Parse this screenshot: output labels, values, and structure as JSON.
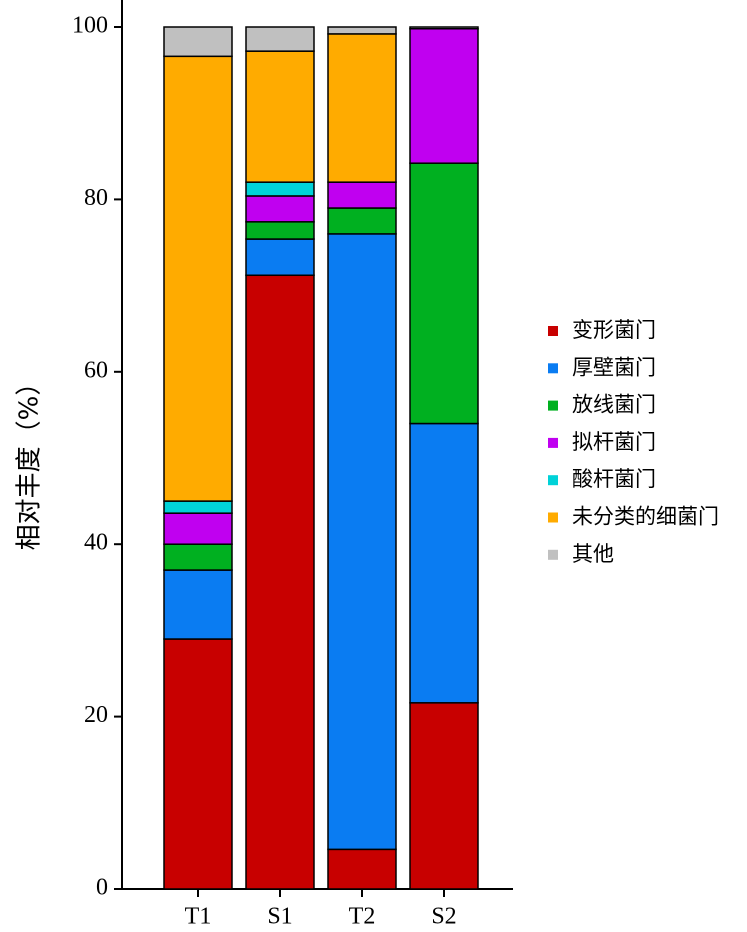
{
  "chart_data": {
    "type": "bar",
    "stacked": true,
    "ylabel": "相对丰度（%）",
    "xlabel": "",
    "title": "",
    "ylim": [
      0,
      100
    ],
    "yticks": [
      0,
      20,
      40,
      60,
      80,
      100
    ],
    "categories": [
      "T1",
      "S1",
      "T2",
      "S2"
    ],
    "legend_position": "right",
    "series": [
      {
        "name": "变形菌门",
        "color": "#c80000",
        "values": [
          29.0,
          71.2,
          4.6,
          21.6
        ]
      },
      {
        "name": "厚壁菌门",
        "color": "#0a7cf2",
        "values": [
          8.0,
          4.2,
          71.4,
          32.4
        ]
      },
      {
        "name": "放线菌门",
        "color": "#00b020",
        "values": [
          3.0,
          2.0,
          3.0,
          30.2
        ]
      },
      {
        "name": "拟杆菌门",
        "color": "#c000f0",
        "values": [
          3.6,
          3.0,
          3.0,
          15.6
        ]
      },
      {
        "name": "酸杆菌门",
        "color": "#00d2d8",
        "values": [
          1.4,
          1.6,
          0.0,
          0.0
        ]
      },
      {
        "name": "未分类的细菌门",
        "color": "#ffab00",
        "values": [
          51.6,
          15.2,
          17.2,
          0.0
        ]
      },
      {
        "name": "其他",
        "color": "#c0c0c0",
        "values": [
          3.4,
          2.8,
          0.8,
          0.2
        ]
      }
    ]
  }
}
